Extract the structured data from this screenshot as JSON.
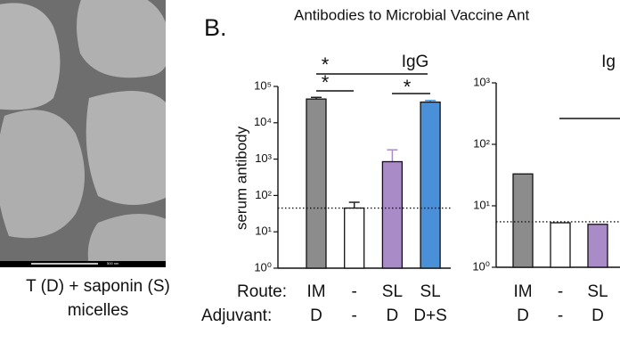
{
  "panel_a": {
    "scale_bar": "500 nm",
    "caption": [
      "T (D) + saponin (S)",
      "micelles"
    ]
  },
  "panel_label": "B.",
  "figure_title": "Antibodies to Microbial Vaccine Ant",
  "chart_data": [
    {
      "type": "bar",
      "title": "IgG",
      "y_label": "serum antibody",
      "log_scale": true,
      "row_labels": [
        "Route:",
        "Adjuvant:"
      ],
      "categories": [
        "IM",
        "-",
        "SL",
        "SL"
      ],
      "adjuvants": [
        "D",
        "-",
        "D",
        "D+S"
      ],
      "values": [
        45000,
        45,
        850,
        37000
      ],
      "errors": [
        5000,
        20,
        950,
        4000
      ],
      "colors": [
        "#8c8c8c",
        "#ffffff",
        "#a98bc8",
        "#4a90d9"
      ],
      "error_colors": [
        "#222222",
        "#222222",
        "#a98bc8",
        "#4a90d9"
      ],
      "reference_line": 45,
      "annotations": [
        "*",
        "*",
        "*"
      ],
      "ylim": [
        1,
        100000
      ],
      "yticks": [
        {
          "value": 1,
          "label": "10⁰"
        },
        {
          "value": 10,
          "label": "10¹"
        },
        {
          "value": 100,
          "label": "10²"
        },
        {
          "value": 1000,
          "label": "10³"
        },
        {
          "value": 10000,
          "label": "10⁴"
        },
        {
          "value": 100000,
          "label": "10⁵"
        }
      ]
    },
    {
      "type": "bar",
      "title": "Ig",
      "log_scale": true,
      "categories": [
        "IM",
        "-",
        "SL"
      ],
      "adjuvants": [
        "D",
        "-",
        "D"
      ],
      "values": [
        33,
        5.3,
        5
      ],
      "colors": [
        "#8c8c8c",
        "#ffffff",
        "#a98bc8"
      ],
      "reference_line": 5.5,
      "ylim": [
        1,
        1000
      ],
      "yticks": [
        {
          "value": 1,
          "label": "10⁰"
        },
        {
          "value": 10,
          "label": "10¹"
        },
        {
          "value": 100,
          "label": "10²"
        },
        {
          "value": 1000,
          "label": "10³"
        }
      ]
    }
  ]
}
